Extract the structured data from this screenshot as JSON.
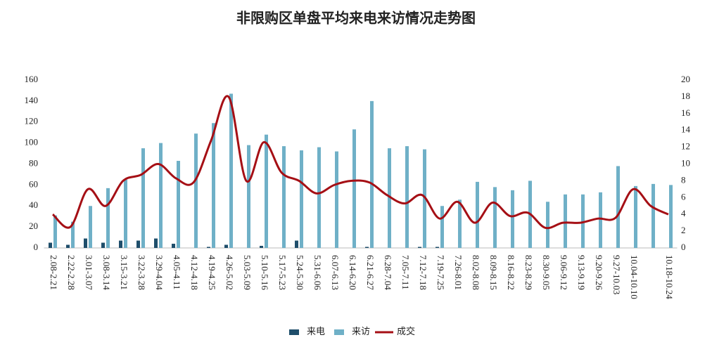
{
  "chart_data": {
    "type": "bar-line",
    "title": "非限购区单盘平均来电来访情况走势图",
    "categories": [
      "2.08-2.21",
      "2.22-2.28",
      "3.01-3.07",
      "3.08-3.14",
      "3.15-3.21",
      "3.22-3.28",
      "3.29-4.04",
      "4.05-4.11",
      "4.12-4.18",
      "4.19-4.25",
      "4.26-5.02",
      "5.03-5.09",
      "5.10-5.16",
      "5.17-5.23",
      "5.24-5.30",
      "5.31-6.06",
      "6.07-6.13",
      "6.14-6.20",
      "6.21-6.27",
      "6.28-7.04",
      "7.05-7.11",
      "7.12-7.18",
      "7.19-7.25",
      "7.26-8.01",
      "8.02-8.08",
      "8.09-8.15",
      "8.16-8.22",
      "8.23-8.29",
      "8.30-9.05",
      "9.06-9.12",
      "9.13-9.19",
      "9.20-9.26",
      "9.27-10.03",
      "10.04-10.10",
      null,
      "10.18-10.24"
    ],
    "series": [
      {
        "name": "来电",
        "color": "#1f4e6b",
        "values": [
          5,
          3,
          9,
          5,
          7,
          7,
          9,
          4,
          0,
          1,
          3,
          0,
          2,
          0,
          7,
          0,
          0,
          0,
          1,
          0,
          0,
          1,
          1,
          0,
          0,
          0,
          0,
          0,
          0,
          0,
          0,
          0,
          0,
          0,
          0,
          0
        ]
      },
      {
        "name": "来访",
        "color": "#6fb0c7",
        "values": [
          31,
          25,
          40,
          57,
          65,
          95,
          100,
          83,
          109,
          119,
          147,
          98,
          108,
          97,
          93,
          96,
          92,
          113,
          140,
          95,
          97,
          94,
          40,
          46,
          63,
          58,
          55,
          64,
          44,
          51,
          51,
          53,
          78,
          59,
          61,
          60
        ]
      },
      {
        "name": "成交",
        "color": "#a50f15",
        "axis": "y2",
        "values": [
          4,
          2.5,
          7,
          5,
          8,
          8.7,
          10,
          8.3,
          7.8,
          12.8,
          18,
          8,
          12.6,
          9,
          8,
          6.5,
          7.5,
          8,
          7.8,
          6.3,
          5.3,
          6.3,
          3.5,
          5.5,
          3,
          5.4,
          3.8,
          4.2,
          2.4,
          3,
          3,
          3.5,
          3.6,
          7,
          5,
          4
        ]
      }
    ],
    "ylim": [
      0,
      160
    ],
    "yticks": [
      0,
      20,
      40,
      60,
      80,
      100,
      120,
      140,
      160
    ],
    "y2lim": [
      0,
      20
    ],
    "y2ticks": [
      0,
      2,
      4,
      6,
      8,
      10,
      12,
      14,
      16,
      18,
      20
    ],
    "legend": "bottom"
  }
}
